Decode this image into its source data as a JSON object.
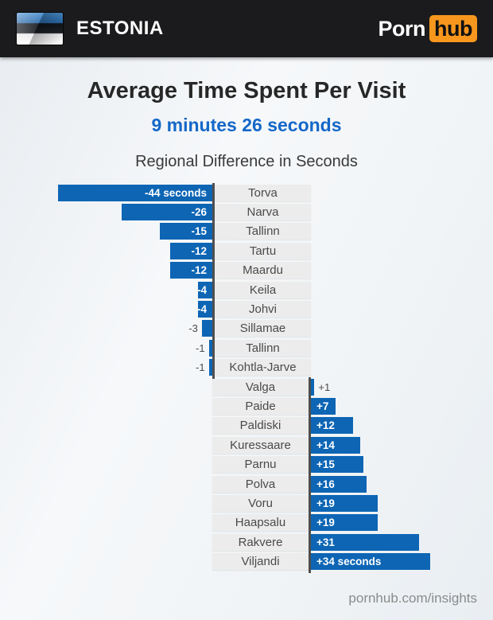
{
  "header": {
    "country": "ESTONIA",
    "logo": {
      "porn": "Porn",
      "hub": "hub"
    }
  },
  "titles": {
    "main": "Average Time Spent Per Visit",
    "highlight": "9 minutes 26 seconds",
    "chart": "Regional Difference in Seconds"
  },
  "footer": {
    "link": "pornhub.com/insights"
  },
  "colors": {
    "header_bg": "#1b1b1d",
    "brand_orange": "#f7971d",
    "highlight_blue": "#1467c8",
    "bar_blue": "#0d65b4",
    "label_box_bg": "#ececec",
    "axis_line": "#4f4f4f"
  },
  "chart_data": {
    "type": "bar",
    "orientation": "horizontal-diverging",
    "unit": "seconds",
    "title": "Regional Difference in Seconds",
    "legend": "none",
    "grid": false,
    "value_range": [
      -44,
      34
    ],
    "categories": [
      "Torva",
      "Narva",
      "Tallinn",
      "Tartu",
      "Maardu",
      "Keila",
      "Johvi",
      "Sillamae",
      "Tallinn",
      "Kohtla-Jarve",
      "Valga",
      "Paide",
      "Paldiski",
      "Kuressaare",
      "Parnu",
      "Polva",
      "Voru",
      "Haapsalu",
      "Rakvere",
      "Viljandi"
    ],
    "values": [
      -44,
      -26,
      -15,
      -12,
      -12,
      -4,
      -4,
      -3,
      -1,
      -1,
      1,
      7,
      12,
      14,
      15,
      16,
      19,
      19,
      31,
      34
    ],
    "value_labels": [
      "-44 seconds",
      "-26",
      "-15",
      "-12",
      "-12",
      "-4",
      "-4",
      "-3",
      "-1",
      "-1",
      "+1",
      "+7",
      "+12",
      "+14",
      "+15",
      "+16",
      "+19",
      "+19",
      "+31",
      "+34 seconds"
    ]
  }
}
